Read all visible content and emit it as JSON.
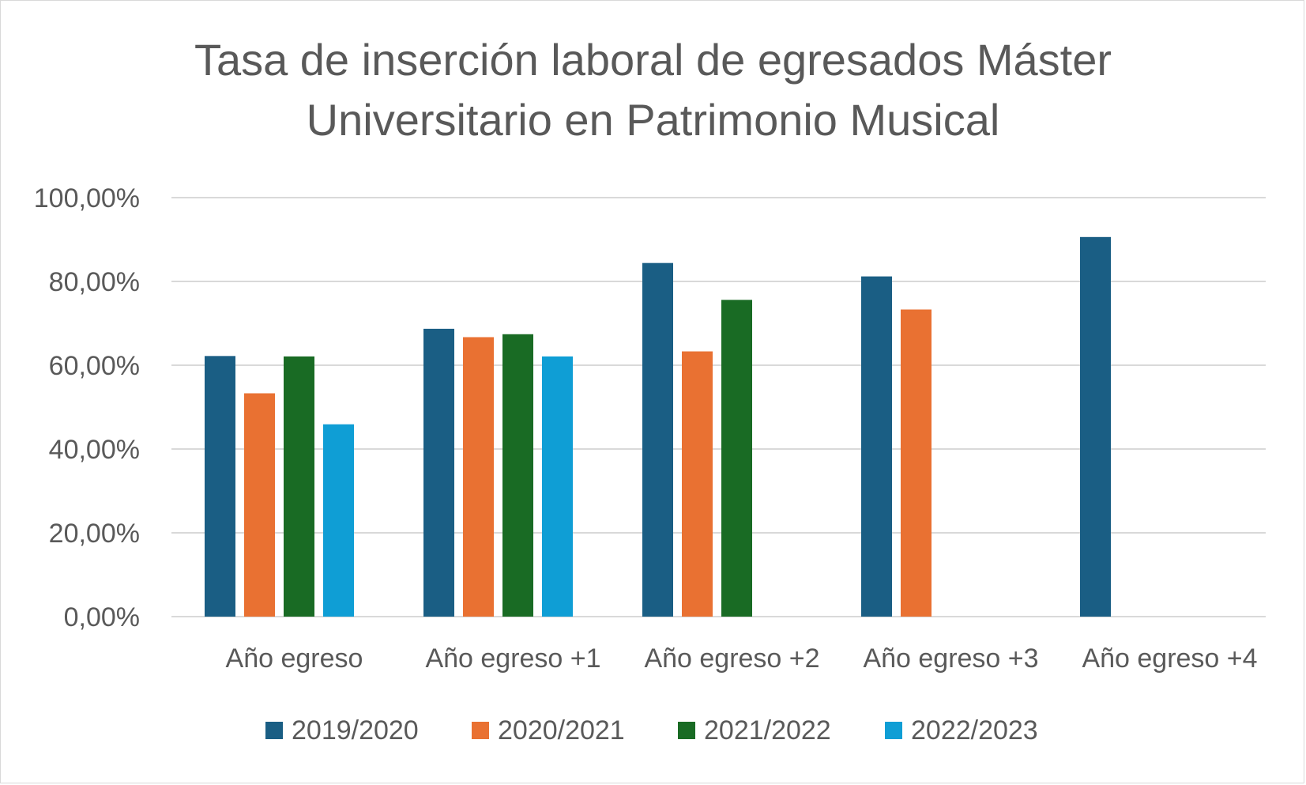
{
  "chart_data": {
    "type": "bar",
    "title_lines": [
      "Tasa de inserción laboral de egresados Máster",
      "Universitario en Patrimonio Musical"
    ],
    "categories": [
      "Año egreso",
      "Año egreso +1",
      "Año egreso +2",
      "Año egreso +3",
      "Año egreso +4"
    ],
    "series": [
      {
        "name": "2019/2020",
        "color": "#1a5e84",
        "values": [
          62.2,
          68.7,
          84.4,
          81.2,
          90.6
        ]
      },
      {
        "name": "2020/2021",
        "color": "#e97132",
        "values": [
          53.3,
          66.7,
          63.3,
          73.3,
          null
        ]
      },
      {
        "name": "2021/2022",
        "color": "#196b24",
        "values": [
          62.1,
          67.4,
          75.6,
          null,
          null
        ]
      },
      {
        "name": "2022/2023",
        "color": "#0f9ed5",
        "values": [
          45.9,
          62.1,
          null,
          null,
          null
        ]
      }
    ],
    "ylim": [
      0,
      100
    ],
    "yticks": [
      "0,00%",
      "20,00%",
      "40,00%",
      "60,00%",
      "80,00%",
      "100,00%"
    ],
    "grid": true,
    "legend_position": "bottom"
  }
}
